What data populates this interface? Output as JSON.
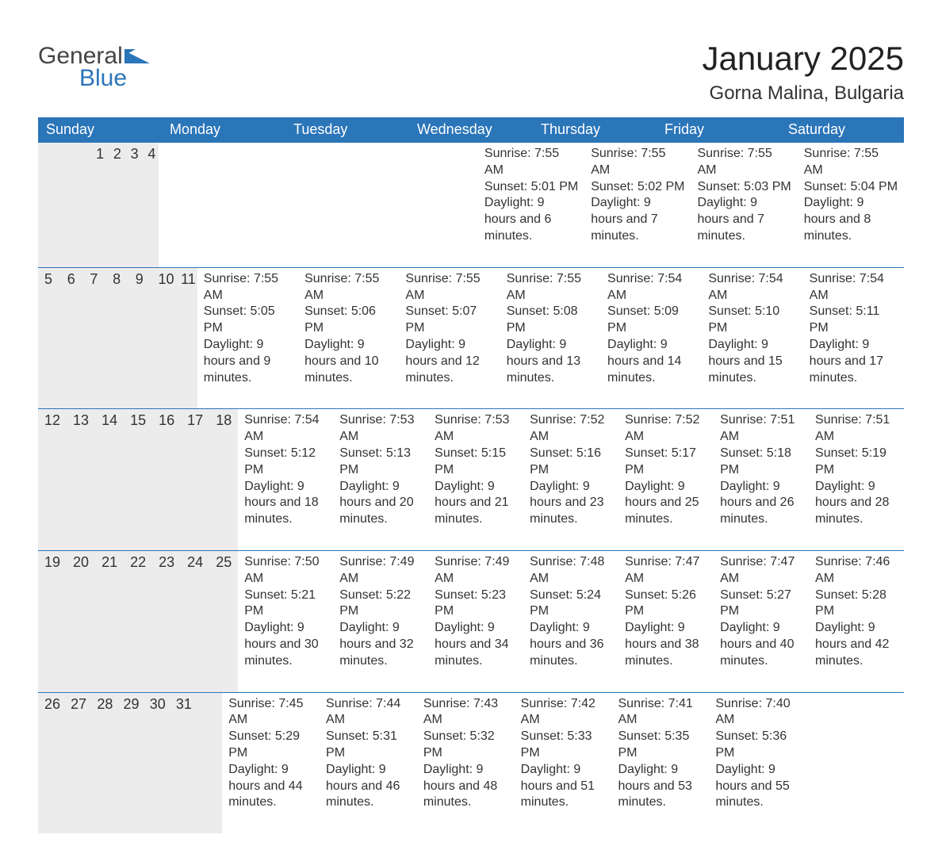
{
  "logo": {
    "general": "General",
    "blue": "Blue",
    "flag_color": "#2b75b9"
  },
  "title": "January 2025",
  "location": "Gorna Malina, Bulgaria",
  "colors": {
    "header_bg": "#2b75b9",
    "header_text": "#ffffff",
    "daynum_bg": "#ececec",
    "divider": "#2b75b9",
    "body_text": "#333333",
    "page_bg": "#ffffff"
  },
  "fonts": {
    "title_size_pt": 32,
    "location_size_pt": 18,
    "header_size_pt": 14,
    "daynum_size_pt": 14,
    "body_size_pt": 12
  },
  "weekdays": [
    "Sunday",
    "Monday",
    "Tuesday",
    "Wednesday",
    "Thursday",
    "Friday",
    "Saturday"
  ],
  "weeks": [
    [
      null,
      null,
      null,
      {
        "n": "1",
        "sunrise": "7:55 AM",
        "sunset": "5:01 PM",
        "daylight": "9 hours and 6 minutes."
      },
      {
        "n": "2",
        "sunrise": "7:55 AM",
        "sunset": "5:02 PM",
        "daylight": "9 hours and 7 minutes."
      },
      {
        "n": "3",
        "sunrise": "7:55 AM",
        "sunset": "5:03 PM",
        "daylight": "9 hours and 7 minutes."
      },
      {
        "n": "4",
        "sunrise": "7:55 AM",
        "sunset": "5:04 PM",
        "daylight": "9 hours and 8 minutes."
      }
    ],
    [
      {
        "n": "5",
        "sunrise": "7:55 AM",
        "sunset": "5:05 PM",
        "daylight": "9 hours and 9 minutes."
      },
      {
        "n": "6",
        "sunrise": "7:55 AM",
        "sunset": "5:06 PM",
        "daylight": "9 hours and 10 minutes."
      },
      {
        "n": "7",
        "sunrise": "7:55 AM",
        "sunset": "5:07 PM",
        "daylight": "9 hours and 12 minutes."
      },
      {
        "n": "8",
        "sunrise": "7:55 AM",
        "sunset": "5:08 PM",
        "daylight": "9 hours and 13 minutes."
      },
      {
        "n": "9",
        "sunrise": "7:54 AM",
        "sunset": "5:09 PM",
        "daylight": "9 hours and 14 minutes."
      },
      {
        "n": "10",
        "sunrise": "7:54 AM",
        "sunset": "5:10 PM",
        "daylight": "9 hours and 15 minutes."
      },
      {
        "n": "11",
        "sunrise": "7:54 AM",
        "sunset": "5:11 PM",
        "daylight": "9 hours and 17 minutes."
      }
    ],
    [
      {
        "n": "12",
        "sunrise": "7:54 AM",
        "sunset": "5:12 PM",
        "daylight": "9 hours and 18 minutes."
      },
      {
        "n": "13",
        "sunrise": "7:53 AM",
        "sunset": "5:13 PM",
        "daylight": "9 hours and 20 minutes."
      },
      {
        "n": "14",
        "sunrise": "7:53 AM",
        "sunset": "5:15 PM",
        "daylight": "9 hours and 21 minutes."
      },
      {
        "n": "15",
        "sunrise": "7:52 AM",
        "sunset": "5:16 PM",
        "daylight": "9 hours and 23 minutes."
      },
      {
        "n": "16",
        "sunrise": "7:52 AM",
        "sunset": "5:17 PM",
        "daylight": "9 hours and 25 minutes."
      },
      {
        "n": "17",
        "sunrise": "7:51 AM",
        "sunset": "5:18 PM",
        "daylight": "9 hours and 26 minutes."
      },
      {
        "n": "18",
        "sunrise": "7:51 AM",
        "sunset": "5:19 PM",
        "daylight": "9 hours and 28 minutes."
      }
    ],
    [
      {
        "n": "19",
        "sunrise": "7:50 AM",
        "sunset": "5:21 PM",
        "daylight": "9 hours and 30 minutes."
      },
      {
        "n": "20",
        "sunrise": "7:49 AM",
        "sunset": "5:22 PM",
        "daylight": "9 hours and 32 minutes."
      },
      {
        "n": "21",
        "sunrise": "7:49 AM",
        "sunset": "5:23 PM",
        "daylight": "9 hours and 34 minutes."
      },
      {
        "n": "22",
        "sunrise": "7:48 AM",
        "sunset": "5:24 PM",
        "daylight": "9 hours and 36 minutes."
      },
      {
        "n": "23",
        "sunrise": "7:47 AM",
        "sunset": "5:26 PM",
        "daylight": "9 hours and 38 minutes."
      },
      {
        "n": "24",
        "sunrise": "7:47 AM",
        "sunset": "5:27 PM",
        "daylight": "9 hours and 40 minutes."
      },
      {
        "n": "25",
        "sunrise": "7:46 AM",
        "sunset": "5:28 PM",
        "daylight": "9 hours and 42 minutes."
      }
    ],
    [
      {
        "n": "26",
        "sunrise": "7:45 AM",
        "sunset": "5:29 PM",
        "daylight": "9 hours and 44 minutes."
      },
      {
        "n": "27",
        "sunrise": "7:44 AM",
        "sunset": "5:31 PM",
        "daylight": "9 hours and 46 minutes."
      },
      {
        "n": "28",
        "sunrise": "7:43 AM",
        "sunset": "5:32 PM",
        "daylight": "9 hours and 48 minutes."
      },
      {
        "n": "29",
        "sunrise": "7:42 AM",
        "sunset": "5:33 PM",
        "daylight": "9 hours and 51 minutes."
      },
      {
        "n": "30",
        "sunrise": "7:41 AM",
        "sunset": "5:35 PM",
        "daylight": "9 hours and 53 minutes."
      },
      {
        "n": "31",
        "sunrise": "7:40 AM",
        "sunset": "5:36 PM",
        "daylight": "9 hours and 55 minutes."
      },
      null
    ]
  ],
  "labels": {
    "sunrise": "Sunrise: ",
    "sunset": "Sunset: ",
    "daylight": "Daylight: "
  }
}
